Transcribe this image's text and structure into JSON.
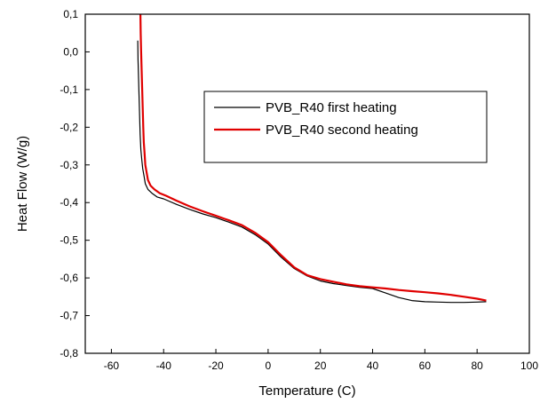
{
  "chart_data": {
    "type": "line",
    "title": "",
    "xlabel": "Temperature (C)",
    "ylabel": "Heat Flow (W/g)",
    "xlim": [
      -70,
      100
    ],
    "ylim": [
      -0.8,
      0.1
    ],
    "x_ticks": [
      -60,
      -40,
      -20,
      0,
      20,
      40,
      60,
      80,
      100
    ],
    "x_tick_labels": [
      "-60",
      "-40",
      "-20",
      "0",
      "20",
      "40",
      "60",
      "80",
      "100"
    ],
    "y_ticks": [
      0.1,
      0.0,
      -0.1,
      -0.2,
      -0.3,
      -0.4,
      -0.5,
      -0.6,
      -0.7,
      -0.8
    ],
    "y_tick_labels": [
      "0,1",
      "0,0",
      "-0,1",
      "-0,2",
      "-0,3",
      "-0,4",
      "-0,5",
      "-0,6",
      "-0,7",
      "-0,8"
    ],
    "grid": false,
    "legend_position": "top-right",
    "series": [
      {
        "name": "PVB_R40 first heating",
        "color": "#000000",
        "x": [
          -49.9,
          -49.8,
          -49.6,
          -49.4,
          -49.2,
          -49.0,
          -48.7,
          -48.3,
          -48.0,
          -47.5,
          -47.0,
          -46.0,
          -44.5,
          -42.5,
          -40.0,
          -35.0,
          -30.0,
          -25.0,
          -20.0,
          -15.0,
          -10.0,
          -5.0,
          0.0,
          5.0,
          10.0,
          15.0,
          20.0,
          25.0,
          30.0,
          35.0,
          40.0,
          45.0,
          50.0,
          55.0,
          60.0,
          65.0,
          70.0,
          75.0,
          80.0,
          83.5
        ],
        "y": [
          0.03,
          -0.02,
          -0.07,
          -0.12,
          -0.17,
          -0.22,
          -0.26,
          -0.29,
          -0.31,
          -0.33,
          -0.35,
          -0.365,
          -0.375,
          -0.385,
          -0.39,
          -0.405,
          -0.418,
          -0.43,
          -0.44,
          -0.452,
          -0.465,
          -0.485,
          -0.51,
          -0.545,
          -0.575,
          -0.595,
          -0.608,
          -0.615,
          -0.62,
          -0.625,
          -0.628,
          -0.64,
          -0.652,
          -0.66,
          -0.663,
          -0.664,
          -0.665,
          -0.665,
          -0.664,
          -0.663
        ]
      },
      {
        "name": "PVB_R40 second heating",
        "color": "#e00000",
        "x": [
          -48.9,
          -48.8,
          -48.6,
          -48.4,
          -48.2,
          -48.0,
          -47.8,
          -47.6,
          -47.3,
          -47.0,
          -46.5,
          -46.0,
          -45.0,
          -43.5,
          -41.5,
          -39.0,
          -35.0,
          -30.0,
          -25.0,
          -20.0,
          -15.0,
          -10.0,
          -5.0,
          0.0,
          5.0,
          10.0,
          15.0,
          20.0,
          25.0,
          30.0,
          35.0,
          40.0,
          45.0,
          50.0,
          55.0,
          60.0,
          65.0,
          70.0,
          75.0,
          80.0,
          83.5
        ],
        "y": [
          0.1,
          0.05,
          0.0,
          -0.05,
          -0.1,
          -0.15,
          -0.2,
          -0.24,
          -0.27,
          -0.3,
          -0.32,
          -0.34,
          -0.355,
          -0.365,
          -0.375,
          -0.382,
          -0.395,
          -0.41,
          -0.423,
          -0.435,
          -0.447,
          -0.46,
          -0.48,
          -0.505,
          -0.54,
          -0.572,
          -0.593,
          -0.603,
          -0.61,
          -0.617,
          -0.622,
          -0.625,
          -0.628,
          -0.632,
          -0.635,
          -0.638,
          -0.641,
          -0.645,
          -0.65,
          -0.655,
          -0.66
        ]
      }
    ]
  }
}
